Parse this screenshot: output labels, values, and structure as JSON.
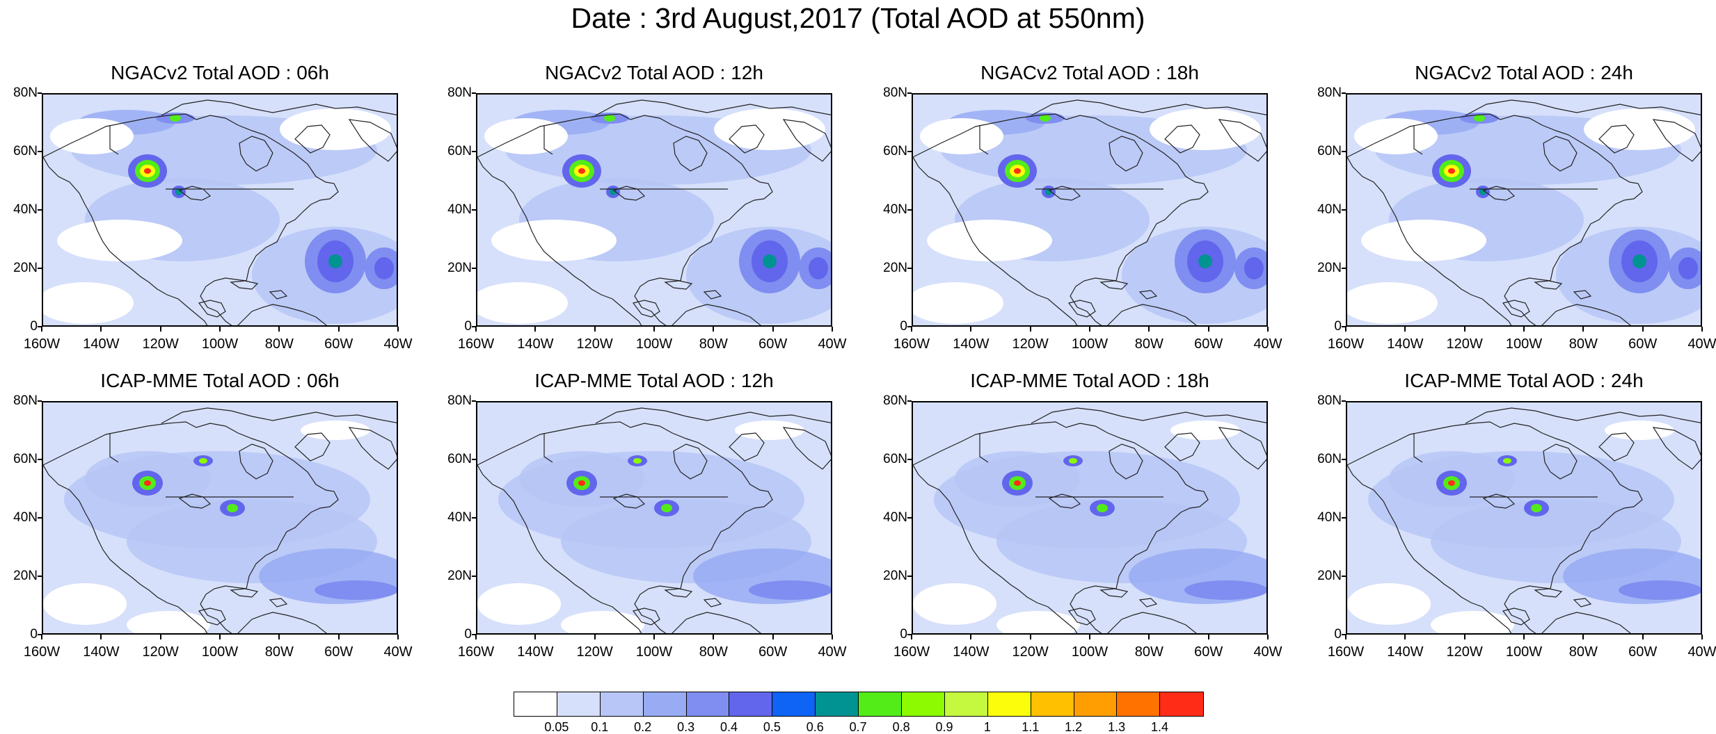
{
  "title": "Date : 3rd August,2017 (Total AOD at 550nm)",
  "map_axes": {
    "lon_labels": [
      "160W",
      "140W",
      "120W",
      "100W",
      "80W",
      "60W",
      "40W"
    ],
    "lat_labels": [
      "80N",
      "60N",
      "40N",
      "20N",
      "0"
    ],
    "lon_range_deg": [
      -160,
      -40
    ],
    "lat_range_deg": [
      0,
      80
    ]
  },
  "panels": [
    {
      "title": "NGACv2 Total AOD : 06h"
    },
    {
      "title": "NGACv2 Total AOD : 12h"
    },
    {
      "title": "NGACv2 Total AOD : 18h"
    },
    {
      "title": "NGACv2 Total AOD : 24h"
    },
    {
      "title": "ICAP-MME Total AOD : 06h"
    },
    {
      "title": "ICAP-MME Total AOD : 12h"
    },
    {
      "title": "ICAP-MME Total AOD : 18h"
    },
    {
      "title": "ICAP-MME Total AOD : 24h"
    }
  ],
  "colorbar": {
    "colors": [
      "#ffffff",
      "#d6e0fb",
      "#b7c6f6",
      "#99acf3",
      "#7f8ef0",
      "#6266ec",
      "#0f63f5",
      "#009391",
      "#53ec19",
      "#8dfa02",
      "#c5f93f",
      "#fbfd0a",
      "#ffc000",
      "#ff9e02",
      "#ff7200",
      "#ff2d18"
    ],
    "labels": [
      "0.05",
      "0.1",
      "0.2",
      "0.3",
      "0.4",
      "0.5",
      "0.6",
      "0.7",
      "0.8",
      "0.9",
      "1",
      "1.1",
      "1.2",
      "1.3",
      "1.4"
    ]
  }
}
